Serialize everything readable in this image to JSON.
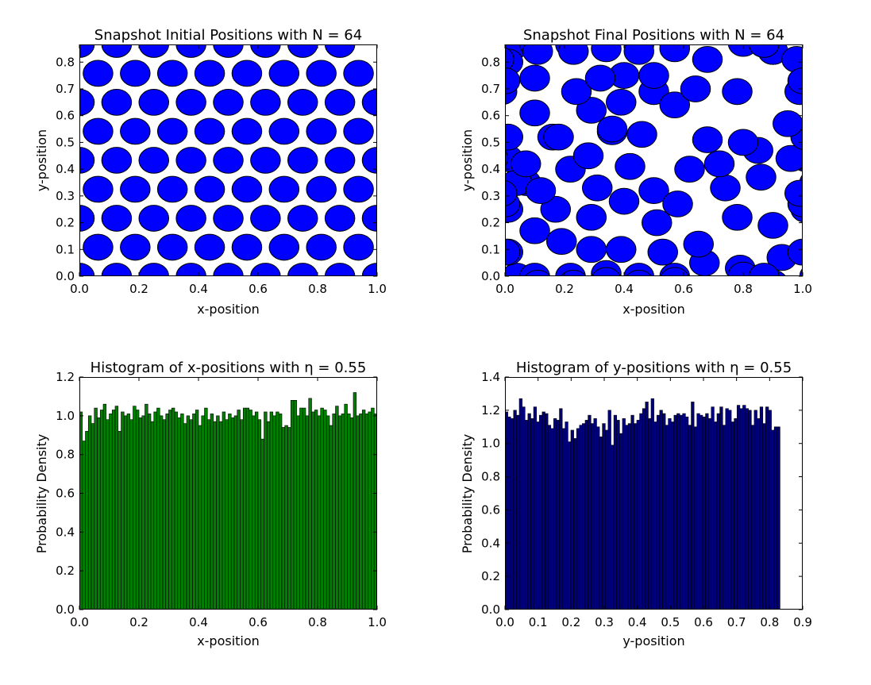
{
  "page": {
    "background": "#ffffff"
  },
  "chart_data": [
    {
      "type": "scatter",
      "marker": "circle",
      "title": "Snapshot Initial Positions with N = 64",
      "xlabel": "x-position",
      "ylabel": "y-position",
      "xlim": [
        0.0,
        1.0
      ],
      "ylim": [
        0.0,
        0.866
      ],
      "xticks": [
        "0.0",
        "0.2",
        "0.4",
        "0.6",
        "0.8",
        "1.0"
      ],
      "yticks": [
        "0.0",
        "0.1",
        "0.2",
        "0.3",
        "0.4",
        "0.5",
        "0.6",
        "0.7",
        "0.8"
      ],
      "grid": false,
      "color": "#0000ff",
      "edge_color": "#000000",
      "disk_radius": 0.05,
      "lattice": {
        "rows": 8,
        "cols": 8,
        "dx": 0.125,
        "dy": 0.1083,
        "x0_even": 0.0,
        "x0_odd": 0.0625
      },
      "x": [],
      "y": []
    },
    {
      "type": "scatter",
      "marker": "circle",
      "title": "Snapshot Final Positions with N = 64",
      "xlabel": "x-position",
      "ylabel": "y-position",
      "xlim": [
        0.0,
        1.0
      ],
      "ylim": [
        0.0,
        0.866
      ],
      "xticks": [
        "0.0",
        "0.2",
        "0.4",
        "0.6",
        "0.8",
        "1.0"
      ],
      "yticks": [
        "0.0",
        "0.1",
        "0.2",
        "0.3",
        "0.4",
        "0.5",
        "0.6",
        "0.7",
        "0.8"
      ],
      "grid": false,
      "color": "#0000ff",
      "edge_color": "#000000",
      "disk_radius": 0.05,
      "x": [
        0.04,
        0.1,
        0.22,
        0.34,
        0.45,
        0.57,
        0.01,
        0.1,
        0.19,
        0.29,
        0.39,
        0.53,
        0.67,
        0.79,
        0.93,
        1.0,
        0.01,
        0.07,
        0.17,
        0.29,
        0.4,
        0.51,
        0.65,
        0.78,
        0.9,
        1.0,
        0.04,
        0.12,
        0.22,
        0.31,
        0.42,
        0.5,
        0.58,
        0.74,
        0.86,
        0.99,
        0.01,
        0.07,
        0.16,
        0.28,
        0.36,
        0.46,
        0.62,
        0.72,
        0.85,
        0.96,
        0.01,
        0.1,
        0.18,
        0.29,
        0.39,
        0.5,
        0.57,
        0.68,
        0.8,
        0.99,
        0.1,
        0.24,
        0.4,
        0.5,
        0.64,
        0.78,
        0.9,
        0.01
      ],
      "y": [
        0.0,
        0.0,
        0.0,
        0.01,
        0.0,
        0.0,
        0.09,
        0.17,
        0.13,
        0.1,
        0.1,
        0.09,
        0.05,
        0.03,
        0.07,
        0.09,
        0.25,
        0.35,
        0.25,
        0.22,
        0.28,
        0.2,
        0.12,
        0.22,
        0.19,
        0.27,
        0.35,
        0.32,
        0.4,
        0.33,
        0.41,
        0.32,
        0.27,
        0.33,
        0.37,
        0.31,
        0.44,
        0.42,
        0.52,
        0.45,
        0.54,
        0.53,
        0.4,
        0.42,
        0.47,
        0.44,
        0.52,
        0.61,
        0.52,
        0.62,
        0.65,
        0.69,
        0.64,
        0.51,
        0.5,
        0.69,
        0.74,
        0.69,
        0.75,
        0.75,
        0.7,
        0.69,
        0.84,
        0.8
      ],
      "extra_points": {
        "x": [
          0.32,
          0.45,
          0.57,
          0.68,
          0.9,
          0.98,
          0.11,
          0.23,
          0.34,
          0.8,
          0.95,
          0.0,
          0.36,
          0.87
        ],
        "y": [
          0.74,
          0.84,
          0.85,
          0.81,
          0.84,
          0.81,
          0.84,
          0.84,
          0.85,
          0.87,
          0.57,
          0.73,
          0.55,
          0.0
        ]
      }
    },
    {
      "type": "bar",
      "title": "Histogram of x-positions with η = 0.55",
      "xlabel": "x-position",
      "ylabel": "Probability Density",
      "xlim": [
        0.0,
        1.0
      ],
      "ylim": [
        0.0,
        1.2
      ],
      "xticks": [
        "0.0",
        "0.2",
        "0.4",
        "0.6",
        "0.8",
        "1.0"
      ],
      "yticks": [
        "0.0",
        "0.2",
        "0.4",
        "0.6",
        "0.8",
        "1.0",
        "1.2"
      ],
      "grid": false,
      "color": "#007f00",
      "edge_color": "#000000",
      "bin_start": 0.0,
      "bin_width": 0.01,
      "values": [
        1.02,
        0.87,
        0.92,
        1.0,
        0.96,
        1.04,
        0.99,
        1.03,
        1.06,
        0.98,
        1.01,
        1.03,
        1.05,
        0.92,
        1.02,
        1.0,
        1.01,
        0.98,
        1.05,
        1.03,
        0.99,
        1.0,
        1.06,
        1.01,
        0.97,
        1.02,
        1.04,
        1.0,
        0.98,
        1.01,
        1.03,
        1.04,
        1.02,
        0.99,
        1.01,
        0.96,
        1.0,
        0.98,
        1.01,
        1.03,
        0.95,
        1.0,
        1.04,
        0.98,
        1.01,
        0.97,
        1.0,
        0.97,
        1.02,
        0.98,
        1.01,
        0.99,
        1.0,
        1.03,
        0.98,
        1.04,
        1.04,
        1.03,
        1.0,
        1.02,
        0.98,
        0.88,
        1.02,
        0.97,
        1.02,
        1.0,
        1.02,
        1.01,
        0.94,
        0.95,
        0.94,
        1.08,
        1.08,
        1.0,
        1.04,
        1.04,
        1.0,
        1.09,
        1.02,
        1.03,
        1.0,
        1.04,
        1.03,
        1.0,
        0.95,
        1.01,
        1.05,
        1.0,
        1.01,
        1.06,
        1.01,
        0.99,
        1.12,
        1.0,
        1.01,
        1.03,
        1.01,
        1.02,
        1.04,
        1.01,
        0.97,
        1.0,
        1.03,
        1.04,
        0.97,
        0.96,
        0.94,
        1.0,
        0.97,
        1.02,
        0.94,
        1.01,
        1.03,
        0.99,
        1.01,
        0.96,
        1.01,
        1.03,
        0.99,
        1.02
      ]
    },
    {
      "type": "bar",
      "title": "Histogram of y-positions with η = 0.55",
      "xlabel": "y-position",
      "ylabel": "Probability Density",
      "xlim": [
        0.0,
        0.9
      ],
      "ylim": [
        0.0,
        1.4
      ],
      "xticks": [
        "0.0",
        "0.1",
        "0.2",
        "0.3",
        "0.4",
        "0.5",
        "0.6",
        "0.7",
        "0.8",
        "0.9"
      ],
      "yticks": [
        "0.0",
        "0.2",
        "0.4",
        "0.6",
        "0.8",
        "1.0",
        "1.2",
        "1.4"
      ],
      "grid": false,
      "color": "#00007f",
      "edge_color": "#000000",
      "bin_start": 0.0,
      "bin_width": 0.00866,
      "values": [
        1.19,
        1.16,
        1.15,
        1.2,
        1.17,
        1.27,
        1.22,
        1.14,
        1.18,
        1.15,
        1.22,
        1.13,
        1.17,
        1.19,
        1.18,
        1.11,
        1.09,
        1.15,
        1.14,
        1.21,
        1.09,
        1.13,
        1.01,
        1.08,
        1.03,
        1.09,
        1.11,
        1.12,
        1.14,
        1.17,
        1.12,
        1.15,
        1.1,
        1.04,
        1.12,
        1.08,
        1.2,
        0.99,
        1.17,
        1.14,
        1.06,
        1.15,
        1.11,
        1.12,
        1.17,
        1.12,
        1.14,
        1.18,
        1.21,
        1.25,
        1.15,
        1.27,
        1.13,
        1.17,
        1.2,
        1.18,
        1.11,
        1.15,
        1.13,
        1.17,
        1.18,
        1.17,
        1.18,
        1.16,
        1.11,
        1.25,
        1.1,
        1.18,
        1.17,
        1.16,
        1.18,
        1.15,
        1.22,
        1.13,
        1.18,
        1.22,
        1.11,
        1.21,
        1.2,
        1.13,
        1.15,
        1.23,
        1.21,
        1.23,
        1.21,
        1.2,
        1.11,
        1.2,
        1.15,
        1.22,
        1.12,
        1.22,
        1.2,
        1.08,
        1.1,
        1.1
      ]
    }
  ]
}
